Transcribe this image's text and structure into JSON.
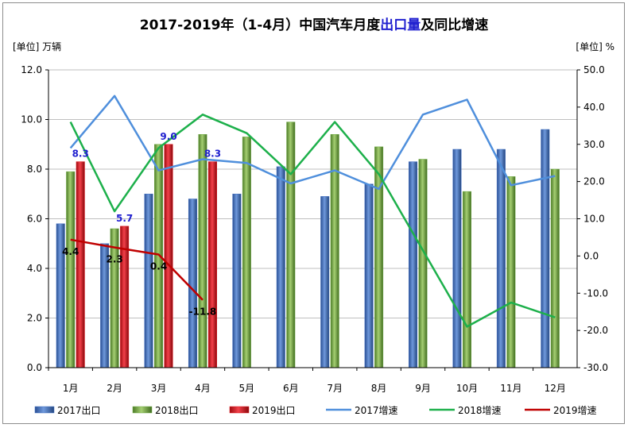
{
  "chart_data": {
    "type": "bar",
    "title": {
      "part1": "2017-2019年（1-4月）中国汽车月度",
      "part2": "出口量",
      "part3": "及同比增速"
    },
    "ylabel_left": "[单位] 万辆",
    "ylabel_right": "[单位] %",
    "categories": [
      "1月",
      "2月",
      "3月",
      "4月",
      "5月",
      "6月",
      "7月",
      "8月",
      "9月",
      "10月",
      "11月",
      "12月"
    ],
    "y_left": {
      "min": 0,
      "max": 12,
      "ticks": [
        "0.0",
        "2.0",
        "4.0",
        "6.0",
        "8.0",
        "10.0",
        "12.0"
      ]
    },
    "y_right": {
      "min": -30,
      "max": 50,
      "ticks": [
        "-30.0",
        "-20.0",
        "-10.0",
        "0.0",
        "10.0",
        "20.0",
        "30.0",
        "40.0",
        "50.0"
      ]
    },
    "bar_series": [
      {
        "name": "2017出口",
        "color": "#4472c4",
        "values": [
          5.8,
          5.0,
          7.0,
          6.8,
          7.0,
          8.1,
          6.9,
          7.4,
          8.3,
          8.8,
          8.8,
          9.6
        ]
      },
      {
        "name": "2018出口",
        "color": "#70ad47",
        "values": [
          7.9,
          5.6,
          9.0,
          9.4,
          9.3,
          9.9,
          9.4,
          8.9,
          8.4,
          7.1,
          7.7,
          8.0
        ]
      },
      {
        "name": "2019出口",
        "color": "#e0131b",
        "values": [
          8.3,
          5.7,
          9.0,
          8.3
        ]
      }
    ],
    "line_series": [
      {
        "name": "2017增速",
        "color": "#4f8fdc",
        "values": [
          29,
          43,
          23,
          26,
          25,
          19.5,
          23,
          18,
          38,
          42,
          19,
          21.5
        ]
      },
      {
        "name": "2018增速",
        "color": "#1db04b",
        "values": [
          36,
          12,
          29,
          38,
          33,
          22,
          36,
          22,
          1.5,
          -19,
          -12.5,
          -16.5
        ]
      },
      {
        "name": "2019增速",
        "color": "#c00000",
        "values": [
          4.4,
          2.3,
          0.4,
          -11.8
        ]
      }
    ],
    "data_labels_2019_export": [
      "8.3",
      "5.7",
      "9.0",
      "8.3"
    ],
    "data_labels_2019_growth": [
      "4.4",
      "2.3",
      "0.4",
      "-11.8"
    ],
    "grid": true,
    "legend_position": "bottom"
  }
}
